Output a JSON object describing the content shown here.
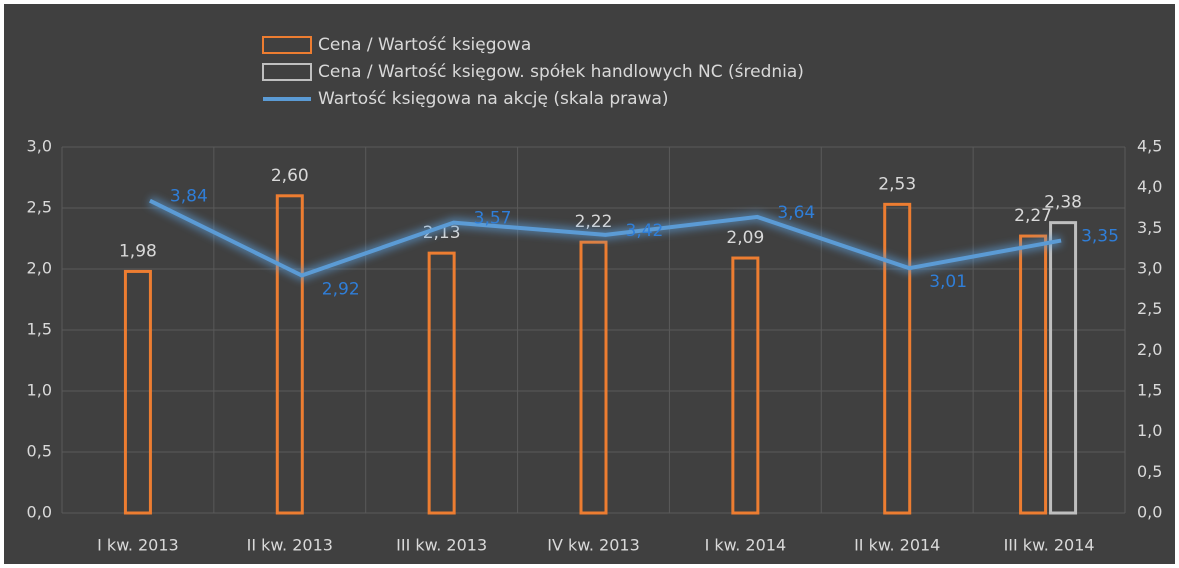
{
  "chart_data": {
    "type": "bar",
    "categories": [
      "I kw. 2013",
      "II kw. 2013",
      "III kw. 2013",
      "IV kw. 2013",
      "I kw. 2014",
      "II kw. 2014",
      "III kw. 2014"
    ],
    "series": [
      {
        "name": "Cena / Wartość księgowa",
        "type": "bar",
        "color": "#ed7d31",
        "values": [
          1.98,
          2.6,
          2.13,
          2.22,
          2.09,
          2.53,
          2.27
        ],
        "value_labels": [
          "1,98",
          "2,60",
          "2,13",
          "2,22",
          "2,09",
          "2,53",
          "2,27"
        ]
      },
      {
        "name": "Cena / Wartość księgow. spółek handlowych NC (średnia)",
        "type": "bar",
        "color": "#bfbfbf",
        "values": [
          null,
          null,
          null,
          null,
          null,
          null,
          2.38
        ],
        "value_labels": [
          null,
          null,
          null,
          null,
          null,
          null,
          "2,38"
        ]
      },
      {
        "name": "Wartość księgowa na akcję (skala prawa)",
        "type": "line",
        "axis": "y2",
        "color": "#5b9bd5",
        "values": [
          3.84,
          2.92,
          3.57,
          3.42,
          3.64,
          3.01,
          3.35
        ],
        "value_labels": [
          "3,84",
          "2,92",
          "3,57",
          "3,42",
          "3,64",
          "3,01",
          "3,35"
        ]
      }
    ],
    "ylim": [
      0,
      3
    ],
    "yticks": [
      {
        "value": 0,
        "label": "0,0"
      },
      {
        "value": 0.5,
        "label": "0,5"
      },
      {
        "value": 1,
        "label": "1,0"
      },
      {
        "value": 1.5,
        "label": "1,5"
      },
      {
        "value": 2,
        "label": "2,0"
      },
      {
        "value": 2.5,
        "label": "2,5"
      },
      {
        "value": 3,
        "label": "3,0"
      }
    ],
    "y2lim": [
      0,
      4.5
    ],
    "y2ticks": [
      {
        "value": 0,
        "label": "0,0"
      },
      {
        "value": 0.5,
        "label": "0,5"
      },
      {
        "value": 1,
        "label": "1,0"
      },
      {
        "value": 1.5,
        "label": "1,5"
      },
      {
        "value": 2,
        "label": "2,0"
      },
      {
        "value": 2.5,
        "label": "2,5"
      },
      {
        "value": 3,
        "label": "3,0"
      },
      {
        "value": 3.5,
        "label": "3,5"
      },
      {
        "value": 4,
        "label": "4,0"
      },
      {
        "value": 4.5,
        "label": "4,5"
      }
    ],
    "grid": true
  }
}
